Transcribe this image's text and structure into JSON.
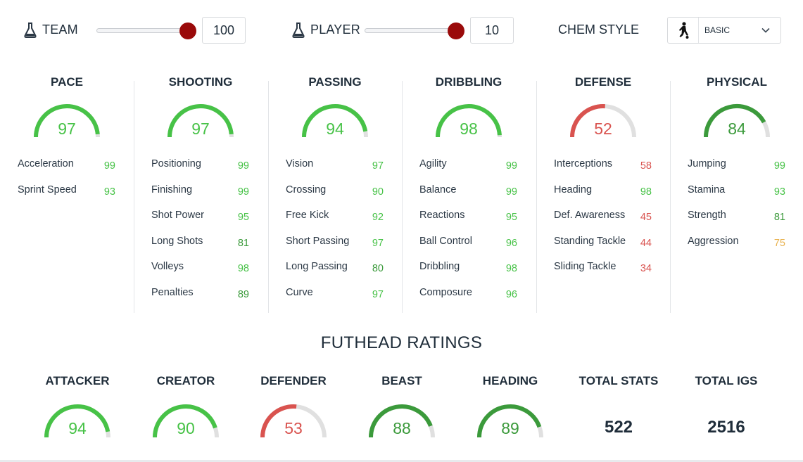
{
  "chemistry": {
    "team": {
      "label": "TEAM",
      "value": "100",
      "fraction": 1.0,
      "icon": "flask-icon"
    },
    "player": {
      "label": "PLAYER",
      "value": "10",
      "fraction": 1.0,
      "icon": "flask-icon"
    },
    "chem_style": {
      "label": "CHEM STYLE",
      "selected": "BASIC",
      "icon": "player-silhouette-icon"
    }
  },
  "colors": {
    "bright_green": "#47c247",
    "dark_green": "#3b9a3b",
    "red": "#d9534f",
    "yellow": "#e8b14d",
    "gauge_track": "#e0e0e0",
    "slider_thumb": "#9a0a0a"
  },
  "stats": [
    {
      "title": "PACE",
      "value": "97",
      "fraction": 0.97,
      "color": "#47c247",
      "subs": [
        {
          "name": "Acceleration",
          "value": "99",
          "color": "#47c247"
        },
        {
          "name": "Sprint Speed",
          "value": "93",
          "color": "#47c247"
        }
      ]
    },
    {
      "title": "SHOOTING",
      "value": "97",
      "fraction": 0.97,
      "color": "#47c247",
      "subs": [
        {
          "name": "Positioning",
          "value": "99",
          "color": "#47c247"
        },
        {
          "name": "Finishing",
          "value": "99",
          "color": "#47c247"
        },
        {
          "name": "Shot Power",
          "value": "95",
          "color": "#47c247"
        },
        {
          "name": "Long Shots",
          "value": "81",
          "color": "#3b9a3b"
        },
        {
          "name": "Volleys",
          "value": "98",
          "color": "#47c247"
        },
        {
          "name": "Penalties",
          "value": "89",
          "color": "#3b9a3b"
        }
      ]
    },
    {
      "title": "PASSING",
      "value": "94",
      "fraction": 0.94,
      "color": "#47c247",
      "subs": [
        {
          "name": "Vision",
          "value": "97",
          "color": "#47c247"
        },
        {
          "name": "Crossing",
          "value": "90",
          "color": "#47c247"
        },
        {
          "name": "Free Kick",
          "value": "92",
          "color": "#47c247"
        },
        {
          "name": "Short Passing",
          "value": "97",
          "color": "#47c247"
        },
        {
          "name": "Long Passing",
          "value": "80",
          "color": "#3b9a3b"
        },
        {
          "name": "Curve",
          "value": "97",
          "color": "#47c247"
        }
      ]
    },
    {
      "title": "DRIBBLING",
      "value": "98",
      "fraction": 0.98,
      "color": "#47c247",
      "subs": [
        {
          "name": "Agility",
          "value": "99",
          "color": "#47c247"
        },
        {
          "name": "Balance",
          "value": "99",
          "color": "#47c247"
        },
        {
          "name": "Reactions",
          "value": "95",
          "color": "#47c247"
        },
        {
          "name": "Ball Control",
          "value": "96",
          "color": "#47c247"
        },
        {
          "name": "Dribbling",
          "value": "98",
          "color": "#47c247"
        },
        {
          "name": "Composure",
          "value": "96",
          "color": "#47c247"
        }
      ]
    },
    {
      "title": "DEFENSE",
      "value": "52",
      "fraction": 0.52,
      "color": "#d9534f",
      "subs": [
        {
          "name": "Interceptions",
          "value": "58",
          "color": "#d9534f"
        },
        {
          "name": "Heading",
          "value": "98",
          "color": "#47c247"
        },
        {
          "name": "Def. Awareness",
          "value": "45",
          "color": "#d9534f"
        },
        {
          "name": "Standing Tackle",
          "value": "44",
          "color": "#d9534f"
        },
        {
          "name": "Sliding Tackle",
          "value": "34",
          "color": "#d9534f"
        }
      ]
    },
    {
      "title": "PHYSICAL",
      "value": "84",
      "fraction": 0.84,
      "color": "#3b9a3b",
      "subs": [
        {
          "name": "Jumping",
          "value": "99",
          "color": "#47c247"
        },
        {
          "name": "Stamina",
          "value": "93",
          "color": "#47c247"
        },
        {
          "name": "Strength",
          "value": "81",
          "color": "#3b9a3b"
        },
        {
          "name": "Aggression",
          "value": "75",
          "color": "#e8b14d"
        }
      ]
    }
  ],
  "futhead": {
    "title": "FUTHEAD RATINGS",
    "ratings": [
      {
        "title": "ATTACKER",
        "value": "94",
        "fraction": 0.94,
        "color": "#47c247"
      },
      {
        "title": "CREATOR",
        "value": "90",
        "fraction": 0.9,
        "color": "#47c247"
      },
      {
        "title": "DEFENDER",
        "value": "53",
        "fraction": 0.53,
        "color": "#d9534f"
      },
      {
        "title": "BEAST",
        "value": "88",
        "fraction": 0.88,
        "color": "#3b9a3b"
      },
      {
        "title": "HEADING",
        "value": "89",
        "fraction": 0.89,
        "color": "#3b9a3b"
      }
    ],
    "totals": [
      {
        "title": "TOTAL STATS",
        "value": "522"
      },
      {
        "title": "TOTAL IGS",
        "value": "2516"
      }
    ]
  }
}
